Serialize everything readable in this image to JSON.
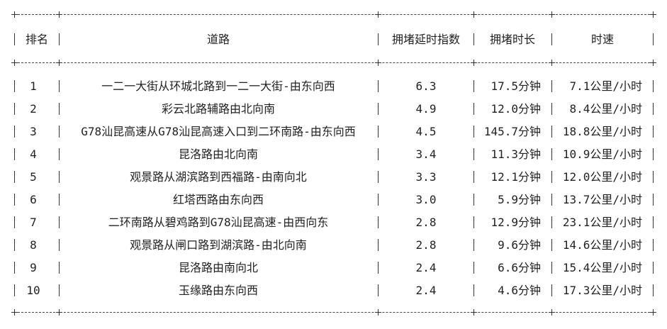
{
  "table": {
    "headers": [
      "排名",
      "道路",
      "拥堵延时指数",
      "拥堵时长",
      "时速"
    ],
    "rows": [
      [
        "1",
        "一二一大街从环城北路到一二一大街-由东向西",
        "6.3",
        "17.5分钟",
        "7.1公里/小时"
      ],
      [
        "2",
        "彩云北路辅路由北向南",
        "4.9",
        "12.0分钟",
        "8.4公里/小时"
      ],
      [
        "3",
        "G78汕昆高速从G78汕昆高速入口到二环南路-由东向西",
        "4.5",
        "145.7分钟",
        "18.8公里/小时"
      ],
      [
        "4",
        "昆洛路由北向南",
        "3.4",
        "11.3分钟",
        "10.9公里/小时"
      ],
      [
        "5",
        "观景路从湖滨路到西福路-由南向北",
        "3.3",
        "12.1分钟",
        "12.0公里/小时"
      ],
      [
        "6",
        "红塔西路由东向西",
        "3.0",
        "5.9分钟",
        "13.7公里/小时"
      ],
      [
        "7",
        "二环南路从碧鸡路到G78汕昆高速-由西向东",
        "2.8",
        "12.9分钟",
        "23.1公里/小时"
      ],
      [
        "8",
        "观景路从闸口路到湖滨路-由北向南",
        "2.8",
        "9.6分钟",
        "14.6公里/小时"
      ],
      [
        "9",
        "昆洛路由南向北",
        "2.4",
        "6.6分钟",
        "15.4公里/小时"
      ],
      [
        "10",
        "玉缘路由东向西",
        "2.4",
        "4.6分钟",
        "17.3公里/小时"
      ]
    ]
  }
}
